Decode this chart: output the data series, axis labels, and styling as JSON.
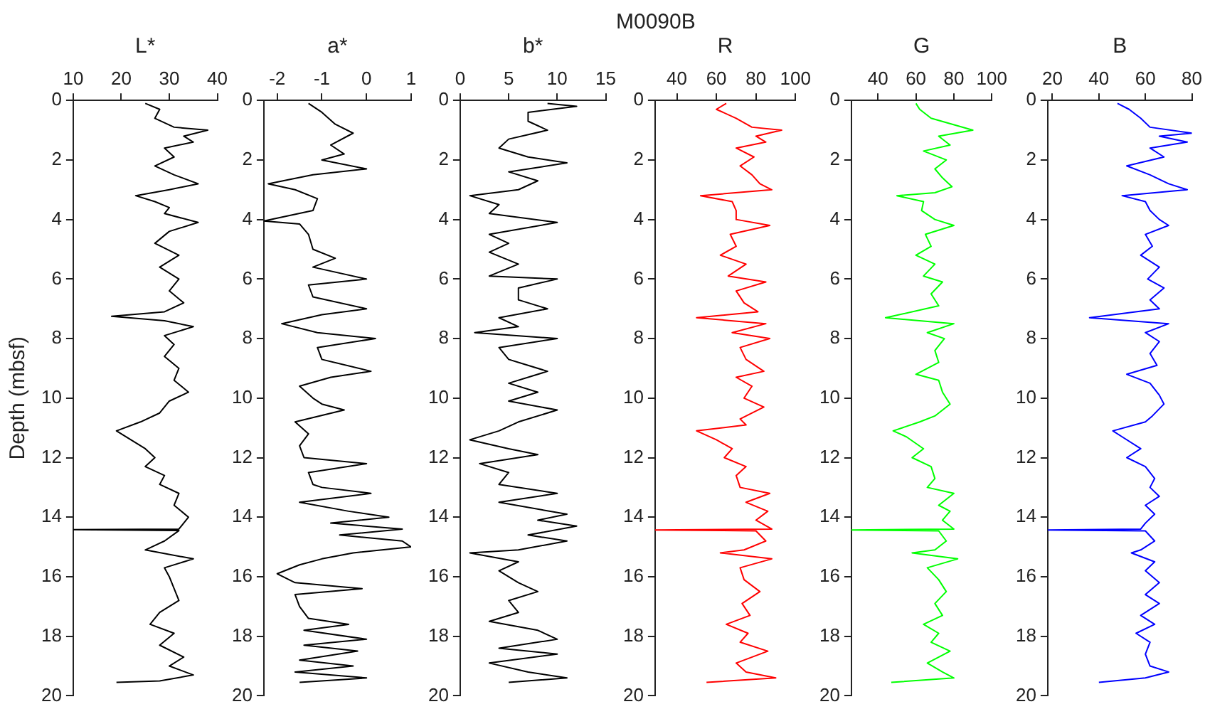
{
  "chart_data": [
    {
      "type": "line",
      "xlabel": "L*",
      "ylabel": "Depth (mbsf)",
      "color": "#000000",
      "xlim": [
        10,
        40
      ],
      "xticks": [
        10,
        20,
        30,
        40
      ],
      "ylim": [
        20,
        0
      ],
      "yticks": [
        0,
        2,
        4,
        6,
        8,
        10,
        12,
        14,
        16,
        18,
        20
      ],
      "x": [
        25,
        28,
        27,
        31,
        38,
        33,
        35,
        29,
        31,
        27,
        31,
        36,
        30,
        23,
        27,
        30,
        29,
        36,
        30,
        27,
        32,
        28,
        32,
        30,
        33,
        29,
        18,
        29,
        35,
        29,
        31,
        29,
        32,
        31,
        34,
        30,
        28,
        24,
        19,
        22,
        25,
        27,
        25,
        29,
        28,
        32,
        31,
        34,
        32,
        10,
        32,
        29,
        25,
        35,
        29,
        30,
        31,
        32,
        28,
        26,
        31,
        28,
        33,
        30,
        35,
        28,
        19
      ],
      "values": [
        0.1,
        0.3,
        0.6,
        0.9,
        1.0,
        1.2,
        1.4,
        1.6,
        1.9,
        2.2,
        2.5,
        2.8,
        3.0,
        3.2,
        3.4,
        3.6,
        3.8,
        4.1,
        4.4,
        4.8,
        5.2,
        5.6,
        6.0,
        6.4,
        6.8,
        7.1,
        7.25,
        7.4,
        7.6,
        7.9,
        8.2,
        8.6,
        9.0,
        9.4,
        9.8,
        10.1,
        10.5,
        10.8,
        11.1,
        11.4,
        11.7,
        12.0,
        12.3,
        12.6,
        12.9,
        13.2,
        13.6,
        14.0,
        14.4,
        14.42,
        14.45,
        14.8,
        15.1,
        15.4,
        15.7,
        16.0,
        16.4,
        16.8,
        17.2,
        17.6,
        17.9,
        18.3,
        18.7,
        19.0,
        19.3,
        19.5,
        19.55
      ]
    },
    {
      "type": "line",
      "xlabel": "a*",
      "color": "#000000",
      "xlim": [
        -2.3,
        1
      ],
      "xticks": [
        -2,
        -1,
        0,
        1
      ],
      "ylim": [
        20,
        0
      ],
      "yticks": [
        0,
        2,
        4,
        6,
        8,
        10,
        12,
        14,
        16,
        18,
        20
      ],
      "x": [
        -1.3,
        -1.0,
        -0.7,
        -0.3,
        -0.8,
        -0.5,
        -1.0,
        0.0,
        -1.2,
        -2.2,
        -1.6,
        -1.1,
        -1.2,
        -2.3,
        -1.5,
        -1.3,
        -1.2,
        -0.7,
        -1.2,
        0.0,
        -1.3,
        -1.2,
        0.0,
        -1.0,
        -1.9,
        -1.1,
        0.2,
        -1.1,
        -1.0,
        0.1,
        -0.8,
        -1.5,
        -1.2,
        -1.0,
        -0.5,
        -1.6,
        -1.3,
        -1.5,
        -1.4,
        0.0,
        -1.3,
        -1.2,
        -1.0,
        0.1,
        -1.5,
        -0.4,
        0.5,
        -0.8,
        0.8,
        -0.6,
        0.8,
        1.0,
        -0.3,
        -1.0,
        -1.5,
        -2.0,
        -1.6,
        -0.1,
        -1.6,
        -1.5,
        -1.3,
        -0.4,
        -1.4,
        0.0,
        -1.4,
        -0.2,
        -1.5,
        -0.3,
        -1.6,
        0.0,
        -1.5
      ],
      "values": [
        0.1,
        0.4,
        0.8,
        1.1,
        1.5,
        1.8,
        2.0,
        2.3,
        2.5,
        2.8,
        3.0,
        3.3,
        3.7,
        4.05,
        4.15,
        4.5,
        5.0,
        5.3,
        5.6,
        6.0,
        6.2,
        6.6,
        7.0,
        7.2,
        7.5,
        7.8,
        8.0,
        8.3,
        8.7,
        9.1,
        9.3,
        9.6,
        10.0,
        10.2,
        10.4,
        10.8,
        11.2,
        11.6,
        12.0,
        12.2,
        12.5,
        12.9,
        13.0,
        13.2,
        13.5,
        13.8,
        14.0,
        14.2,
        14.4,
        14.6,
        14.8,
        15.0,
        15.2,
        15.4,
        15.6,
        15.9,
        16.2,
        16.4,
        16.6,
        17.0,
        17.4,
        17.6,
        17.8,
        18.1,
        18.3,
        18.5,
        18.8,
        19.0,
        19.2,
        19.4,
        19.55
      ]
    },
    {
      "type": "line",
      "xlabel": "b*",
      "color": "#000000",
      "xlim": [
        0,
        15
      ],
      "xticks": [
        0,
        5,
        10,
        15
      ],
      "ylim": [
        20,
        0
      ],
      "yticks": [
        0,
        2,
        4,
        6,
        8,
        10,
        12,
        14,
        16,
        18,
        20
      ],
      "x": [
        9,
        12,
        7,
        7,
        9,
        5,
        4,
        7,
        11,
        5,
        8,
        6,
        1,
        4,
        3,
        10,
        3,
        5,
        3,
        6,
        3,
        10,
        6,
        6,
        9,
        4,
        6,
        1.5,
        10,
        4,
        5,
        9,
        5,
        8,
        5,
        10,
        6,
        4,
        1,
        5,
        8,
        2,
        5,
        4,
        10,
        4,
        11,
        8,
        12,
        7,
        11,
        6,
        1,
        6,
        4,
        6,
        8,
        5,
        6,
        3,
        8,
        10,
        4,
        10,
        3,
        7,
        11,
        5
      ],
      "values": [
        0.1,
        0.2,
        0.4,
        0.7,
        1.0,
        1.3,
        1.6,
        1.9,
        2.1,
        2.4,
        2.7,
        3.0,
        3.2,
        3.5,
        3.8,
        4.1,
        4.5,
        4.8,
        5.1,
        5.5,
        5.9,
        6.0,
        6.3,
        6.7,
        7.0,
        7.3,
        7.6,
        7.8,
        8.0,
        8.3,
        8.7,
        9.1,
        9.5,
        9.8,
        10.1,
        10.4,
        10.8,
        11.1,
        11.4,
        11.7,
        11.9,
        12.2,
        12.5,
        12.9,
        13.2,
        13.5,
        13.9,
        14.1,
        14.3,
        14.6,
        14.8,
        15.1,
        15.2,
        15.5,
        15.8,
        16.2,
        16.5,
        16.8,
        17.2,
        17.5,
        17.8,
        18.1,
        18.4,
        18.6,
        18.9,
        19.2,
        19.4,
        19.55
      ]
    },
    {
      "type": "line",
      "title": "M0090B",
      "xlabel": "R",
      "color": "#ff0000",
      "xlim": [
        29,
        100
      ],
      "xticks": [
        40,
        60,
        80,
        100
      ],
      "ylim": [
        20,
        0
      ],
      "yticks": [
        0,
        2,
        4,
        6,
        8,
        10,
        12,
        14,
        16,
        18,
        20
      ],
      "x": [
        65,
        60,
        70,
        78,
        93,
        80,
        85,
        70,
        79,
        72,
        78,
        82,
        88,
        52,
        68,
        70,
        70,
        87,
        67,
        70,
        62,
        75,
        66,
        85,
        70,
        74,
        81,
        50,
        85,
        68,
        87,
        72,
        75,
        84,
        70,
        78,
        74,
        84,
        72,
        75,
        50,
        60,
        68,
        64,
        75,
        70,
        72,
        87,
        75,
        86,
        80,
        88,
        29,
        80,
        85,
        74,
        62,
        88,
        72,
        74,
        82,
        73,
        77,
        65,
        76,
        72,
        86,
        70,
        75,
        90,
        55
      ],
      "values": [
        0.1,
        0.3,
        0.6,
        0.9,
        1.0,
        1.2,
        1.4,
        1.6,
        1.9,
        2.2,
        2.5,
        2.8,
        3.0,
        3.2,
        3.4,
        3.7,
        4.0,
        4.2,
        4.5,
        4.9,
        5.2,
        5.5,
        5.9,
        6.1,
        6.4,
        6.8,
        7.1,
        7.3,
        7.5,
        7.8,
        8.0,
        8.3,
        8.7,
        9.1,
        9.3,
        9.6,
        10.0,
        10.3,
        10.7,
        10.9,
        11.1,
        11.4,
        11.7,
        12.0,
        12.3,
        12.6,
        13.0,
        13.2,
        13.5,
        13.8,
        14.1,
        14.4,
        14.43,
        14.46,
        14.8,
        15.1,
        15.2,
        15.4,
        15.7,
        16.1,
        16.5,
        16.9,
        17.3,
        17.6,
        17.9,
        18.2,
        18.5,
        18.9,
        19.2,
        19.4,
        19.55
      ]
    },
    {
      "type": "line",
      "xlabel": "G",
      "color": "#00ff00",
      "xlim": [
        26,
        100
      ],
      "xticks": [
        40,
        60,
        80,
        100
      ],
      "ylim": [
        20,
        0
      ],
      "yticks": [
        0,
        2,
        4,
        6,
        8,
        10,
        12,
        14,
        16,
        18,
        20
      ],
      "x": [
        60,
        62,
        68,
        90,
        72,
        78,
        64,
        76,
        70,
        74,
        79,
        70,
        50,
        64,
        63,
        70,
        80,
        65,
        68,
        60,
        70,
        64,
        74,
        68,
        72,
        44,
        80,
        66,
        75,
        70,
        72,
        60,
        72,
        74,
        78,
        70,
        62,
        48,
        55,
        64,
        58,
        68,
        70,
        66,
        80,
        72,
        78,
        74,
        80,
        26,
        72,
        76,
        70,
        58,
        82,
        66,
        72,
        76,
        70,
        74,
        64,
        72,
        68,
        78,
        66,
        74,
        80,
        47
      ],
      "values": [
        0.1,
        0.3,
        0.6,
        1.0,
        1.2,
        1.5,
        1.7,
        2.0,
        2.3,
        2.6,
        2.9,
        3.1,
        3.2,
        3.4,
        3.7,
        4.0,
        4.2,
        4.5,
        4.9,
        5.2,
        5.5,
        5.9,
        6.1,
        6.5,
        6.9,
        7.3,
        7.5,
        7.8,
        8.0,
        8.4,
        8.8,
        9.2,
        9.4,
        9.8,
        10.2,
        10.6,
        10.8,
        11.1,
        11.3,
        11.7,
        12.0,
        12.3,
        12.7,
        13.0,
        13.2,
        13.6,
        13.8,
        14.1,
        14.4,
        14.43,
        14.46,
        14.8,
        15.1,
        15.2,
        15.4,
        15.7,
        16.1,
        16.5,
        16.9,
        17.3,
        17.6,
        17.9,
        18.2,
        18.5,
        18.9,
        19.2,
        19.4,
        19.55
      ]
    },
    {
      "type": "line",
      "xlabel": "B",
      "color": "#0000ff",
      "xlim": [
        18,
        80
      ],
      "xticks": [
        20,
        40,
        60,
        80
      ],
      "ylim": [
        20,
        0
      ],
      "yticks": [
        0,
        2,
        4,
        6,
        8,
        10,
        12,
        14,
        16,
        18,
        20
      ],
      "x": [
        48,
        53,
        58,
        62,
        80,
        66,
        78,
        62,
        68,
        52,
        62,
        70,
        78,
        50,
        60,
        62,
        66,
        70,
        60,
        63,
        58,
        66,
        61,
        68,
        62,
        66,
        36,
        70,
        60,
        66,
        62,
        65,
        52,
        62,
        66,
        68,
        63,
        60,
        46,
        50,
        58,
        52,
        60,
        64,
        62,
        66,
        60,
        64,
        60,
        58,
        18,
        60,
        64,
        58,
        54,
        64,
        60,
        66,
        60,
        66,
        58,
        64,
        56,
        62,
        60,
        62,
        70,
        60,
        40
      ],
      "values": [
        0.1,
        0.3,
        0.6,
        0.9,
        1.1,
        1.2,
        1.4,
        1.6,
        1.9,
        2.2,
        2.5,
        2.8,
        3.0,
        3.2,
        3.4,
        3.7,
        4.0,
        4.2,
        4.5,
        4.9,
        5.2,
        5.6,
        6.0,
        6.3,
        6.7,
        7.0,
        7.3,
        7.5,
        7.8,
        8.1,
        8.5,
        8.9,
        9.2,
        9.5,
        9.9,
        10.2,
        10.6,
        10.8,
        11.1,
        11.3,
        11.7,
        12.0,
        12.3,
        12.7,
        13.0,
        13.3,
        13.6,
        13.9,
        14.2,
        14.4,
        14.43,
        14.46,
        14.8,
        15.1,
        15.2,
        15.5,
        15.8,
        16.2,
        16.6,
        16.9,
        17.3,
        17.6,
        17.9,
        18.2,
        18.6,
        19.0,
        19.2,
        19.4,
        19.55
      ]
    }
  ]
}
